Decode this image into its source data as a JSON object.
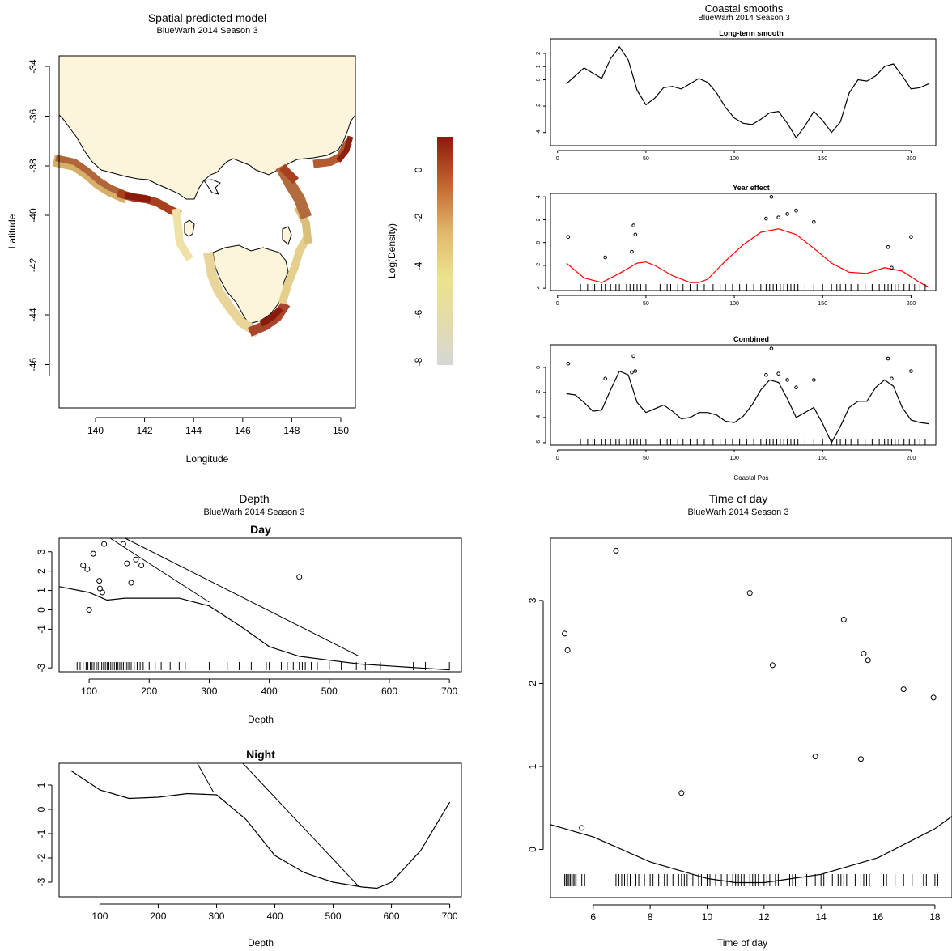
{
  "colors": {
    "land": "#fdf5db",
    "sea": "#ffffff",
    "fit_line": "#000000",
    "year_line": "#ff0000",
    "points": "#000000"
  },
  "spatial": {
    "title": "Spatial predicted model",
    "subtitle": "BlueWarh 2014 Season 3",
    "xlabel": "Longitude",
    "ylabel": "Latitude",
    "xticks": [
      "140",
      "142",
      "144",
      "146",
      "148",
      "150"
    ],
    "yticks": [
      "-34",
      "-36",
      "-38",
      "-40",
      "-42",
      "-44",
      "-46"
    ],
    "legend_label": "Log(Density)",
    "legend_ticks": [
      "0",
      "-2",
      "-4",
      "-6",
      "-8"
    ]
  },
  "coastal": {
    "title": "Coastal smooths",
    "subtitle": "BlueWarh 2014 Season 3",
    "xlabel": "Coastal Pos",
    "xticks": [
      "0",
      "50",
      "100",
      "150",
      "200"
    ],
    "panels": [
      "Long-term smooth",
      "Year effect",
      "Combined"
    ]
  },
  "depth": {
    "title": "Depth",
    "subtitle": "BlueWarh 2014 Season 3",
    "xlabel": "Depth",
    "xticks": [
      "100",
      "200",
      "300",
      "400",
      "500",
      "600",
      "700"
    ],
    "panels": [
      "Day",
      "Night"
    ]
  },
  "timeofday": {
    "title": "Time of day",
    "subtitle": "BlueWarh 2014 Season 3",
    "xlabel": "Time of day",
    "xticks": [
      "6",
      "8",
      "10",
      "12",
      "14",
      "16",
      "18"
    ],
    "yticks": [
      "0",
      "1",
      "2",
      "3"
    ]
  },
  "chart_data": [
    {
      "type": "heatmap",
      "title": "Spatial predicted model",
      "subtitle": "BlueWarh 2014 Season 3",
      "xlabel": "Longitude",
      "ylabel": "Latitude",
      "xlim": [
        138.5,
        150.6
      ],
      "ylim": [
        -47.2,
        -32.8
      ],
      "colorbar": {
        "label": "Log(Density)",
        "range": [
          -8,
          1.3
        ]
      },
      "coastal_density_peaks": [
        {
          "lon": 141.7,
          "lat": -38.6,
          "value": 1.0
        },
        {
          "lon": 147.3,
          "lat": -43.4,
          "value": 1.0
        },
        {
          "lon": 148.5,
          "lat": -38.6,
          "value": 0.0
        },
        {
          "lon": 149.8,
          "lat": -37.6,
          "value": -0.5
        }
      ]
    },
    {
      "type": "line",
      "title": "Long-term smooth",
      "xlabel": "",
      "ylabel": "",
      "xlim": [
        -4,
        214
      ],
      "ylim": [
        -5,
        3.1
      ],
      "x": [
        5,
        15,
        25,
        30,
        35,
        40,
        45,
        50,
        55,
        60,
        65,
        70,
        75,
        80,
        85,
        90,
        95,
        100,
        105,
        110,
        115,
        120,
        125,
        130,
        135,
        140,
        145,
        150,
        155,
        160,
        165,
        170,
        175,
        180,
        185,
        190,
        195,
        200,
        205,
        210
      ],
      "y": [
        -0.3,
        0.9,
        0.1,
        1.6,
        2.5,
        1.5,
        -0.8,
        -1.9,
        -1.4,
        -0.6,
        -0.5,
        -0.7,
        -0.3,
        0.1,
        -0.2,
        -1.0,
        -2.1,
        -2.9,
        -3.3,
        -3.4,
        -3.0,
        -2.5,
        -2.4,
        -3.3,
        -4.4,
        -3.5,
        -2.4,
        -3.1,
        -4.0,
        -3.2,
        -1.0,
        0.0,
        -0.1,
        0.3,
        1.0,
        1.2,
        0.3,
        -0.7,
        -0.6,
        -0.3
      ]
    },
    {
      "type": "line",
      "title": "Year effect",
      "xlabel": "",
      "ylabel": "",
      "xlim": [
        -4,
        214
      ],
      "ylim": [
        -4.2,
        4.3
      ],
      "x": [
        5,
        15,
        25,
        35,
        45,
        50,
        55,
        65,
        75,
        80,
        85,
        95,
        105,
        115,
        125,
        135,
        145,
        155,
        165,
        175,
        185,
        195,
        205,
        210
      ],
      "y": [
        -1.8,
        -3.1,
        -3.5,
        -2.7,
        -1.8,
        -1.7,
        -2.0,
        -2.9,
        -3.5,
        -3.5,
        -3.2,
        -1.6,
        -0.2,
        0.9,
        1.2,
        0.7,
        -0.5,
        -1.8,
        -2.6,
        -2.7,
        -2.2,
        -2.5,
        -3.5,
        -3.9
      ],
      "points": {
        "x": [
          6,
          27,
          42,
          43,
          44,
          118,
          121,
          125,
          130,
          135,
          145,
          187,
          189,
          200
        ],
        "y": [
          0.5,
          -1.3,
          -0.8,
          1.5,
          0.7,
          2.1,
          4.0,
          2.2,
          2.5,
          2.8,
          1.8,
          -0.4,
          -2.2,
          0.5
        ]
      },
      "rug_x": [
        13,
        15,
        17,
        20,
        21,
        25,
        27,
        30,
        33,
        35,
        37,
        39,
        41,
        43,
        45,
        47,
        50,
        58,
        62,
        64,
        68,
        71,
        75,
        79,
        83,
        88,
        92,
        95,
        99,
        103,
        107,
        111,
        115,
        118,
        120,
        122,
        124,
        126,
        128,
        130,
        132,
        134,
        136,
        140,
        145,
        150,
        155,
        158,
        160,
        163,
        166,
        170,
        174,
        178,
        182,
        185,
        187,
        189,
        191,
        193,
        196,
        199,
        202,
        205,
        208
      ]
    },
    {
      "type": "line",
      "title": "Combined",
      "xlabel": "Coastal Pos",
      "ylabel": "",
      "xlim": [
        -4,
        214
      ],
      "ylim": [
        -6.2,
        1.8
      ],
      "x": [
        5,
        10,
        15,
        20,
        25,
        30,
        35,
        40,
        45,
        50,
        55,
        60,
        65,
        70,
        75,
        80,
        85,
        90,
        95,
        100,
        105,
        110,
        115,
        120,
        125,
        130,
        135,
        140,
        145,
        150,
        155,
        160,
        165,
        170,
        175,
        180,
        185,
        190,
        195,
        200,
        205,
        210
      ],
      "y": [
        -2.1,
        -2.2,
        -2.8,
        -3.5,
        -3.4,
        -1.8,
        -0.3,
        -0.6,
        -2.8,
        -3.6,
        -3.3,
        -3.0,
        -3.5,
        -4.1,
        -4.0,
        -3.6,
        -3.6,
        -3.8,
        -4.3,
        -4.4,
        -3.9,
        -3.0,
        -1.8,
        -1.0,
        -1.2,
        -2.5,
        -4.0,
        -3.6,
        -3.2,
        -4.5,
        -6.0,
        -4.7,
        -3.2,
        -2.7,
        -2.7,
        -1.6,
        -1.0,
        -1.5,
        -3.2,
        -4.2,
        -4.4,
        -4.5
      ],
      "points": {
        "x": [
          6,
          27,
          42,
          43,
          44,
          118,
          121,
          125,
          130,
          135,
          145,
          187,
          189,
          200
        ],
        "y": [
          0.3,
          -0.9,
          -0.4,
          0.9,
          -0.3,
          -0.6,
          1.5,
          -0.5,
          -1.0,
          -1.6,
          -1.0,
          0.7,
          -0.9,
          -0.3
        ]
      },
      "rug_x": [
        13,
        15,
        17,
        20,
        21,
        25,
        27,
        30,
        33,
        35,
        37,
        39,
        41,
        43,
        45,
        47,
        50,
        58,
        62,
        64,
        68,
        71,
        75,
        79,
        83,
        88,
        92,
        95,
        99,
        103,
        107,
        111,
        115,
        118,
        120,
        122,
        124,
        126,
        128,
        130,
        132,
        134,
        136,
        140,
        145,
        150,
        155,
        158,
        160,
        163,
        166,
        170,
        174,
        178,
        182,
        185,
        187,
        189,
        191,
        193,
        196,
        199,
        202,
        205,
        208
      ]
    },
    {
      "type": "line",
      "title": "Day",
      "xlabel": "Depth",
      "ylabel": "",
      "xlim": [
        50,
        720
      ],
      "ylim": [
        -3.2,
        3.7
      ],
      "x": [
        50,
        100,
        130,
        160,
        200,
        250,
        300,
        350,
        400,
        450,
        500,
        550,
        600,
        650,
        700
      ],
      "y": [
        1.2,
        0.9,
        0.5,
        0.6,
        0.6,
        0.6,
        0.2,
        -0.8,
        -1.9,
        -2.4,
        -2.6,
        -2.8,
        -2.9,
        -3.0,
        -3.1
      ],
      "points": {
        "x": [
          90,
          97,
          100,
          107,
          117,
          118,
          122,
          125,
          157,
          163,
          170,
          178,
          187,
          450
        ],
        "y": [
          2.3,
          2.1,
          0.0,
          2.9,
          1.5,
          1.1,
          0.9,
          3.4,
          3.4,
          2.4,
          1.4,
          2.6,
          2.3,
          1.7
        ]
      },
      "rug_x": [
        75,
        80,
        85,
        90,
        95,
        98,
        102,
        105,
        108,
        112,
        115,
        118,
        121,
        124,
        127,
        130,
        133,
        136,
        139,
        142,
        145,
        148,
        151,
        154,
        157,
        160,
        163,
        166,
        170,
        175,
        180,
        185,
        190,
        200,
        210,
        220,
        235,
        250,
        260,
        300,
        330,
        350,
        370,
        395,
        400,
        420,
        430,
        440,
        450,
        455,
        460,
        470,
        480,
        500,
        520,
        545,
        560,
        585,
        640,
        660,
        700
      ]
    },
    {
      "type": "line",
      "title": "Night",
      "xlabel": "Depth",
      "ylabel": "",
      "xlim": [
        30,
        720
      ],
      "ylim": [
        -3.6,
        1.9
      ],
      "x": [
        50,
        100,
        150,
        200,
        250,
        300,
        350,
        400,
        450,
        500,
        550,
        575,
        600,
        650,
        700
      ],
      "y": [
        1.6,
        0.8,
        0.45,
        0.5,
        0.65,
        0.6,
        -0.4,
        -1.9,
        -2.6,
        -3.0,
        -3.2,
        -3.25,
        -3.0,
        -1.7,
        0.3
      ]
    },
    {
      "type": "scatter",
      "title": "Time of day",
      "xlabel": "Time of day",
      "ylabel": "",
      "xlim": [
        4.5,
        18.6
      ],
      "ylim": [
        -0.58,
        3.75
      ],
      "points": {
        "x": [
          5.0,
          5.1,
          5.6,
          6.8,
          9.1,
          11.5,
          12.3,
          13.8,
          14.8,
          15.4,
          15.5,
          15.65,
          16.9,
          17.95
        ],
        "y": [
          2.6,
          2.4,
          0.26,
          3.6,
          0.68,
          3.09,
          2.22,
          1.12,
          2.77,
          1.09,
          2.36,
          2.28,
          1.93,
          1.83
        ]
      },
      "line": {
        "x": [
          4.5,
          6,
          8,
          10,
          11,
          12,
          13,
          14,
          16,
          18,
          18.6
        ],
        "y": [
          0.3,
          0.15,
          -0.15,
          -0.35,
          -0.4,
          -0.4,
          -0.35,
          -0.3,
          -0.1,
          0.25,
          0.4
        ]
      },
      "rug_x": [
        5.0,
        5.05,
        5.1,
        5.15,
        5.2,
        5.25,
        5.3,
        5.35,
        5.4,
        5.6,
        5.7,
        6.8,
        6.9,
        7.0,
        7.1,
        7.2,
        7.3,
        7.5,
        7.6,
        7.8,
        8.0,
        8.1,
        8.3,
        8.5,
        8.6,
        8.8,
        9.0,
        9.1,
        9.2,
        9.3,
        9.5,
        9.7,
        9.8,
        10.0,
        10.1,
        10.3,
        10.5,
        10.7,
        10.9,
        11.0,
        11.1,
        11.2,
        11.3,
        11.5,
        11.6,
        11.7,
        11.8,
        12.0,
        12.1,
        12.2,
        12.4,
        12.5,
        12.7,
        12.9,
        13.0,
        13.1,
        13.3,
        13.5,
        13.8,
        14.0,
        14.1,
        14.4,
        14.6,
        14.7,
        14.8,
        14.9,
        15.2,
        15.4,
        15.5,
        15.6,
        15.7,
        16.2,
        16.3,
        16.6,
        16.9,
        17.2,
        17.6,
        17.7,
        18.0,
        18.1
      ]
    }
  ]
}
